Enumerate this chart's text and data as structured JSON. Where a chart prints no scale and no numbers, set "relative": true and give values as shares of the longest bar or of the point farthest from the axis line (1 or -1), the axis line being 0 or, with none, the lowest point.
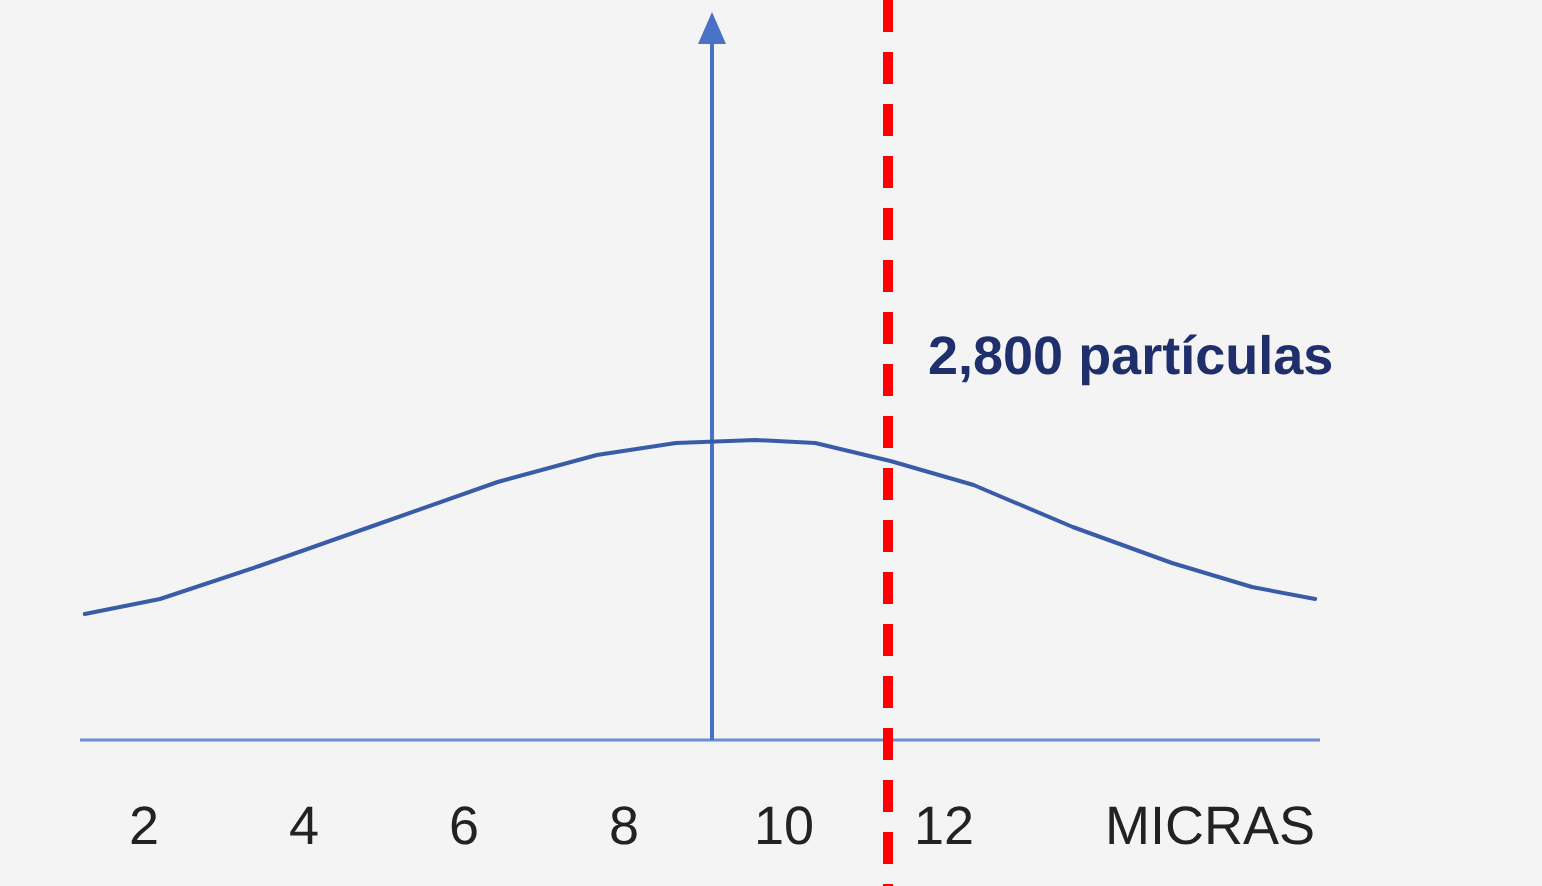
{
  "chart_data": {
    "type": "line",
    "relative": true,
    "xlabel": "MICRAS",
    "x": [
      1.26,
      2.2,
      3.44,
      4.93,
      6.42,
      7.66,
      8.65,
      9.64,
      10.39,
      11.33,
      12.37,
      13.61,
      14.85,
      15.85,
      16.64
    ],
    "series": [
      {
        "color": "#3a5ca8",
        "values": [
          0.42,
          0.47,
          0.58,
          0.72,
          0.86,
          0.95,
          0.99,
          1,
          0.99,
          0.93,
          0.85,
          0.71,
          0.59,
          0.51,
          0.47
        ]
      }
    ],
    "xlim": [
      1.2,
      16.7
    ],
    "xticks": [
      2,
      4,
      6,
      8,
      10,
      12
    ],
    "marker": "none",
    "line_style": "solid",
    "grid": false,
    "ref_lines": [
      {
        "axis": "x",
        "value": 11.3,
        "label": "2,800 partículas",
        "color": "#ff0000",
        "line_style": "dashed"
      }
    ]
  }
}
